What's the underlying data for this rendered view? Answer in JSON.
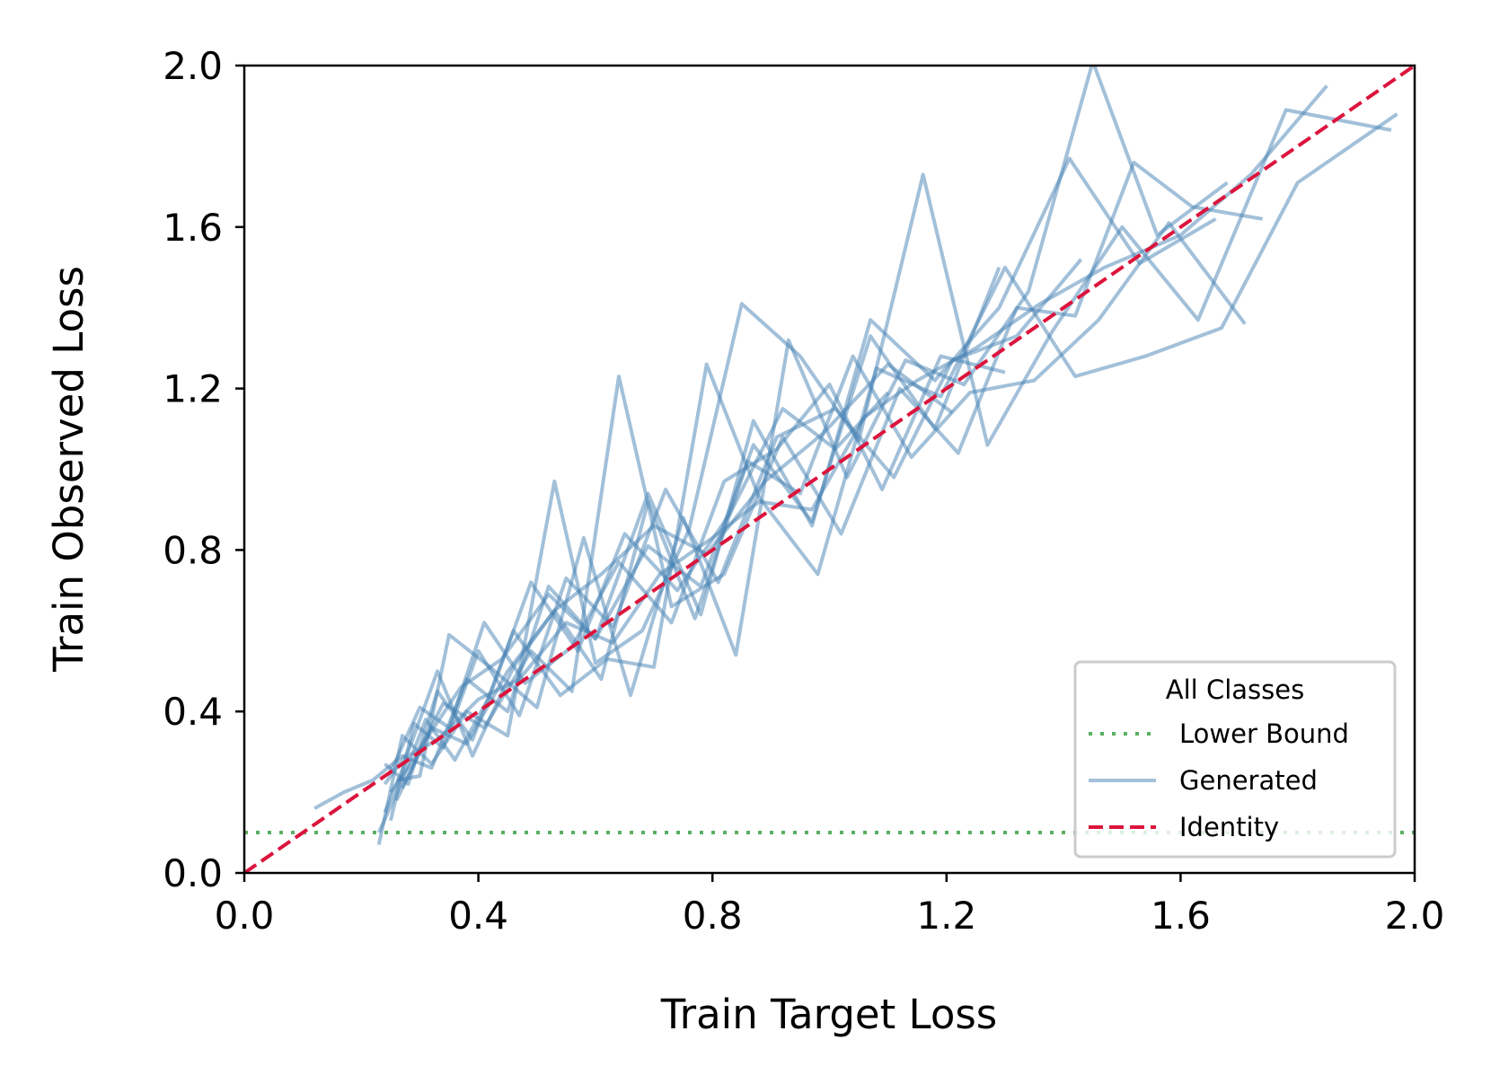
{
  "chart_data": {
    "type": "line",
    "xlabel": "Train Target Loss",
    "ylabel": "Train Observed Loss",
    "xlim": [
      0.0,
      2.0
    ],
    "ylim": [
      0.0,
      2.0
    ],
    "xticks": [
      "0.0",
      "0.4",
      "0.8",
      "1.2",
      "1.6",
      "2.0"
    ],
    "yticks": [
      "0.0",
      "0.4",
      "0.8",
      "1.2",
      "1.6",
      "2.0"
    ],
    "grid": false,
    "legend": {
      "title": "All Classes",
      "position": "lower-right",
      "entries": [
        {
          "label": "Lower Bound",
          "style": "dotted",
          "color": "#5aae61"
        },
        {
          "label": "Generated",
          "style": "solid",
          "color": "#4682b4"
        },
        {
          "label": "Identity",
          "style": "dashed",
          "color": "#dc143c"
        }
      ]
    },
    "colors": {
      "generated": "#4682b4",
      "identity": "#dc143c",
      "lower_bound": "#5aae61"
    },
    "series": [
      {
        "name": "Lower Bound",
        "style": "dotted",
        "x": [
          0.0,
          2.0
        ],
        "y": [
          0.1,
          0.1
        ]
      },
      {
        "name": "Identity",
        "style": "dashed",
        "x": [
          0.0,
          2.0
        ],
        "y": [
          0.0,
          2.0
        ]
      },
      {
        "name": "Generated",
        "style": "solid",
        "lines": [
          {
            "x": [
              0.24,
              0.28,
              0.33,
              0.4,
              0.47,
              0.55,
              0.63,
              0.71,
              0.8,
              0.88,
              0.97,
              1.06,
              1.15,
              1.25,
              1.36,
              1.47,
              1.6,
              1.72,
              1.85
            ],
            "y": [
              0.15,
              0.29,
              0.33,
              0.43,
              0.48,
              0.62,
              0.57,
              0.74,
              0.83,
              0.92,
              0.9,
              1.13,
              1.22,
              1.3,
              1.41,
              1.5,
              1.58,
              1.73,
              1.95
            ]
          },
          {
            "x": [
              0.25,
              0.29,
              0.34,
              0.41,
              0.49,
              0.56,
              0.64,
              0.73,
              0.82,
              0.92,
              1.02,
              1.12,
              1.22,
              1.32,
              1.42,
              1.52,
              1.62,
              1.74
            ],
            "y": [
              0.2,
              0.28,
              0.42,
              0.36,
              0.55,
              0.45,
              1.23,
              0.66,
              0.74,
              1.08,
              0.84,
              1.2,
              1.04,
              1.4,
              1.38,
              1.76,
              1.65,
              1.62
            ]
          },
          {
            "x": [
              0.23,
              0.27,
              0.32,
              0.38,
              0.45,
              0.53,
              0.6,
              0.68,
              0.76,
              0.85,
              0.95,
              1.05,
              1.16,
              1.27,
              1.38,
              1.5,
              1.63,
              1.78,
              1.96
            ],
            "y": [
              0.07,
              0.34,
              0.27,
              0.4,
              0.34,
              0.97,
              0.52,
              0.6,
              0.85,
              1.41,
              1.28,
              1.07,
              1.73,
              1.06,
              1.34,
              1.6,
              1.37,
              1.89,
              1.84
            ]
          },
          {
            "x": [
              0.26,
              0.3,
              0.35,
              0.42,
              0.5,
              0.58,
              0.66,
              0.75,
              0.84,
              0.93,
              1.03,
              1.13,
              1.23,
              1.34,
              1.45,
              1.56,
              1.68
            ],
            "y": [
              0.23,
              0.24,
              0.59,
              0.51,
              0.41,
              0.83,
              0.44,
              0.88,
              0.54,
              1.32,
              0.98,
              1.27,
              1.21,
              1.44,
              2.01,
              1.58,
              1.71
            ]
          },
          {
            "x": [
              0.24,
              0.28,
              0.33,
              0.39,
              0.46,
              0.54,
              0.62,
              0.7,
              0.79,
              0.88,
              0.98,
              1.08,
              1.19,
              1.3,
              1.42,
              1.54,
              1.67,
              1.8,
              1.97
            ],
            "y": [
              0.27,
              0.22,
              0.45,
              0.33,
              0.6,
              0.44,
              0.53,
              0.51,
              1.26,
              0.93,
              0.74,
              1.25,
              1.18,
              1.5,
              1.23,
              1.28,
              1.35,
              1.71,
              1.88
            ]
          },
          {
            "x": [
              0.12,
              0.17,
              0.22,
              0.27,
              0.32,
              0.38,
              0.45,
              0.52,
              0.6,
              0.69,
              0.78,
              0.87,
              0.97,
              1.07,
              1.18,
              1.29,
              1.41,
              1.53,
              1.66
            ],
            "y": [
              0.16,
              0.2,
              0.23,
              0.29,
              0.26,
              0.48,
              0.4,
              0.71,
              0.58,
              0.94,
              0.64,
              1.12,
              0.86,
              1.37,
              1.22,
              1.4,
              1.77,
              1.51,
              1.62
            ]
          },
          {
            "x": [
              0.25,
              0.29,
              0.34,
              0.4,
              0.47,
              0.55,
              0.63,
              0.72,
              0.81,
              0.91,
              1.01,
              1.11,
              1.21,
              1.32,
              1.43
            ],
            "y": [
              0.13,
              0.37,
              0.31,
              0.55,
              0.39,
              0.73,
              0.61,
              0.95,
              0.72,
              1.08,
              1.15,
              0.98,
              1.27,
              1.33,
              1.52
            ]
          },
          {
            "x": [
              0.24,
              0.28,
              0.33,
              0.39,
              0.46,
              0.53,
              0.61,
              0.69,
              0.77,
              0.86,
              0.95,
              1.04,
              1.14,
              1.24,
              1.35,
              1.46,
              1.58,
              1.71
            ],
            "y": [
              0.22,
              0.3,
              0.5,
              0.29,
              0.51,
              0.65,
              0.48,
              0.92,
              0.63,
              1.02,
              0.94,
              1.28,
              1.03,
              1.19,
              1.22,
              1.37,
              1.61,
              1.36
            ]
          },
          {
            "x": [
              0.26,
              0.31,
              0.37,
              0.44,
              0.52,
              0.6,
              0.69,
              0.78,
              0.87,
              0.97,
              1.07,
              1.18,
              1.29
            ],
            "y": [
              0.18,
              0.33,
              0.46,
              0.53,
              0.69,
              0.58,
              0.81,
              0.71,
              1.06,
              0.87,
              1.33,
              1.1,
              1.5
            ]
          },
          {
            "x": [
              0.25,
              0.3,
              0.35,
              0.41,
              0.48,
              0.56,
              0.64,
              0.73,
              0.82,
              0.91,
              1.0,
              1.09,
              1.19,
              1.3
            ],
            "y": [
              0.25,
              0.41,
              0.36,
              0.62,
              0.47,
              0.56,
              0.77,
              0.62,
              0.97,
              1.05,
              1.21,
              0.95,
              1.28,
              1.24
            ]
          },
          {
            "x": [
              0.23,
              0.27,
              0.31,
              0.36,
              0.42,
              0.49,
              0.57,
              0.65,
              0.74,
              0.83,
              0.92,
              1.01,
              1.1
            ],
            "y": [
              0.1,
              0.23,
              0.38,
              0.28,
              0.44,
              0.72,
              0.55,
              0.84,
              0.7,
              0.89,
              1.15,
              1.05,
              1.19
            ]
          },
          {
            "x": [
              0.27,
              0.32,
              0.38,
              0.45,
              0.53,
              0.61,
              0.7,
              0.79,
              0.89,
              0.99,
              1.1,
              1.21
            ],
            "y": [
              0.21,
              0.36,
              0.32,
              0.5,
              0.65,
              0.74,
              0.86,
              0.79,
              0.97,
              1.09,
              1.26,
              1.14
            ]
          }
        ]
      }
    ]
  }
}
